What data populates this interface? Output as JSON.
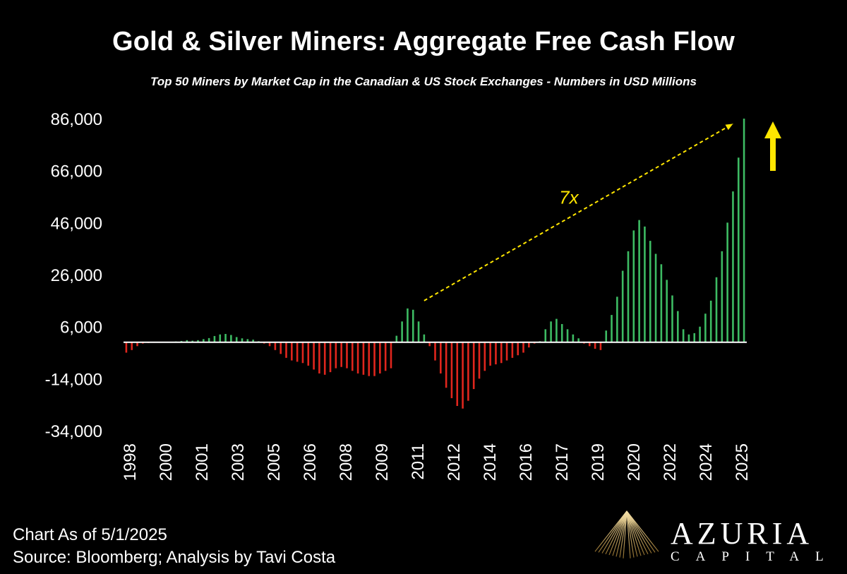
{
  "header": {
    "title": "Gold & Silver Miners: Aggregate Free Cash Flow",
    "subtitle": "Top 50 Miners by Market Cap in the Canadian & US Stock Exchanges - Numbers in USD Millions"
  },
  "footer": {
    "line1": "Chart As of 5/1/2025",
    "line2": "Source: Bloomberg; Analysis by Tavi Costa"
  },
  "logo": {
    "name": "AZURIA",
    "sub": "CAPITAL"
  },
  "colors": {
    "positive": "#3dbb63",
    "negative": "#e0261d",
    "annotation": "#ffe600",
    "background": "#000000"
  },
  "chart_data": {
    "type": "bar",
    "ylim": [
      -34000,
      86000
    ],
    "yticks": [
      86000,
      66000,
      46000,
      26000,
      6000,
      -14000,
      -34000
    ],
    "ytick_labels": [
      "86,000",
      "66,000",
      "46,000",
      "26,000",
      "6,000",
      "-14,000",
      "-34,000"
    ],
    "xtick_labels": [
      "1998",
      "2000",
      "2001",
      "2003",
      "2005",
      "2006",
      "2008",
      "2009",
      "2011",
      "2012",
      "2014",
      "2016",
      "2017",
      "2019",
      "2020",
      "2022",
      "2024",
      "2025"
    ],
    "values": [
      -4000,
      -3000,
      -1500,
      -500,
      -300,
      -200,
      -100,
      100,
      200,
      300,
      500,
      800,
      600,
      800,
      1200,
      1600,
      2400,
      3000,
      3200,
      2800,
      2000,
      1500,
      1200,
      1000,
      400,
      -500,
      -1500,
      -3000,
      -4500,
      -6000,
      -7000,
      -7500,
      -8000,
      -9000,
      -10500,
      -12000,
      -12500,
      -11500,
      -10000,
      -9500,
      -10000,
      -11000,
      -12000,
      -12500,
      -13000,
      -13000,
      -12000,
      -11000,
      -10000,
      2500,
      8000,
      13000,
      12500,
      8000,
      3000,
      -1500,
      -7000,
      -12000,
      -17500,
      -21500,
      -24500,
      -25500,
      -22500,
      -18000,
      -14000,
      -11000,
      -9000,
      -8500,
      -8000,
      -7000,
      -6000,
      -5000,
      -4000,
      -2000,
      -500,
      400,
      5000,
      8000,
      9000,
      7000,
      5000,
      3000,
      1500,
      -500,
      -1500,
      -2500,
      -3000,
      4500,
      10500,
      17500,
      27500,
      35000,
      43000,
      47000,
      44500,
      39000,
      34000,
      30000,
      24000,
      18000,
      12000,
      5000,
      3000,
      3500,
      6000,
      11000,
      16000,
      25000,
      35000,
      46000,
      58000,
      71000,
      86000
    ],
    "annotations": [
      {
        "text": "7x",
        "type": "dashed-arrow",
        "from": [
          54,
          16000
        ],
        "to": [
          110,
          84000
        ]
      },
      {
        "text": "",
        "type": "up-arrow"
      }
    ],
    "grid": false,
    "legend": "none"
  }
}
